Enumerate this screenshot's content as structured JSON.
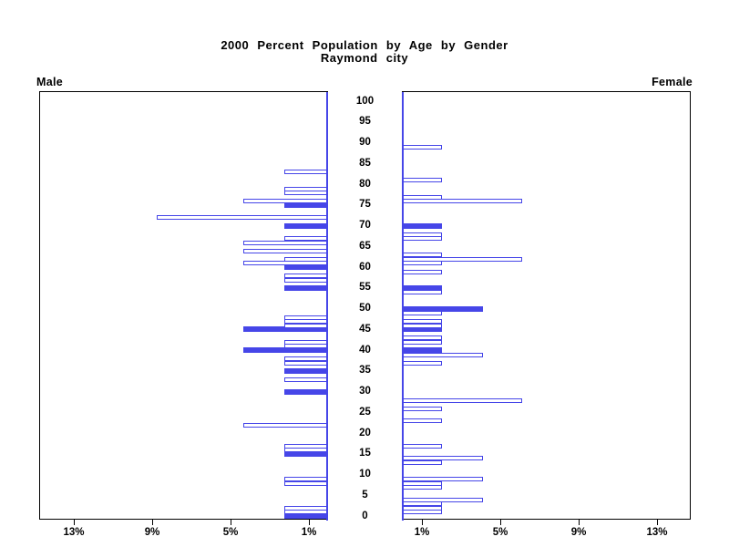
{
  "title": {
    "line1": "2000 Percent Population by Age by Gender",
    "line2": "Raymond city"
  },
  "panel_labels": {
    "male": "Male",
    "female": "Female"
  },
  "colors": {
    "bar_blue": "#4646e8",
    "frame_black": "#000000",
    "background": "#ffffff"
  },
  "chart_data": {
    "type": "bar",
    "variant": "population-pyramid",
    "title": "2000 Percent Population by Age by Gender",
    "subtitle": "Raymond city",
    "orientation": "horizontal, male bars grow left / female bars grow right",
    "age_axis": {
      "min": 0,
      "max": 100,
      "label_step": 5,
      "labels": [
        100,
        95,
        90,
        85,
        80,
        75,
        70,
        65,
        60,
        55,
        50,
        45,
        40,
        35,
        30,
        25,
        20,
        15,
        10,
        5,
        0
      ]
    },
    "pct_axis": {
      "min": 0,
      "max": 15,
      "ticks": [
        1,
        5,
        9,
        13
      ],
      "male_tick_labels": [
        "13%",
        "9%",
        "5%",
        "1%"
      ],
      "female_tick_labels": [
        "1%",
        "5%",
        "9%",
        "13%"
      ]
    },
    "bar_style_rule": "ages divisible by 5 are solid filled bars; all other ages are hollow outlined bars",
    "series": [
      {
        "name": "Male",
        "side": "left",
        "points": [
          {
            "age": 0,
            "pct": 2.2,
            "filled": true
          },
          {
            "age": 1,
            "pct": 2.2,
            "filled": false
          },
          {
            "age": 2,
            "pct": 2.2,
            "filled": false
          },
          {
            "age": 8,
            "pct": 2.2,
            "filled": false
          },
          {
            "age": 9,
            "pct": 2.2,
            "filled": false
          },
          {
            "age": 15,
            "pct": 2.2,
            "filled": true
          },
          {
            "age": 16,
            "pct": 2.2,
            "filled": false
          },
          {
            "age": 17,
            "pct": 2.2,
            "filled": false
          },
          {
            "age": 22,
            "pct": 4.3,
            "filled": false
          },
          {
            "age": 30,
            "pct": 2.2,
            "filled": true
          },
          {
            "age": 33,
            "pct": 2.2,
            "filled": false
          },
          {
            "age": 35,
            "pct": 2.2,
            "filled": true
          },
          {
            "age": 37,
            "pct": 2.2,
            "filled": false
          },
          {
            "age": 38,
            "pct": 2.2,
            "filled": false
          },
          {
            "age": 40,
            "pct": 4.3,
            "filled": true
          },
          {
            "age": 41,
            "pct": 2.2,
            "filled": false
          },
          {
            "age": 42,
            "pct": 2.2,
            "filled": false
          },
          {
            "age": 45,
            "pct": 4.3,
            "filled": true
          },
          {
            "age": 46,
            "pct": 2.2,
            "filled": false
          },
          {
            "age": 47,
            "pct": 2.2,
            "filled": false
          },
          {
            "age": 48,
            "pct": 2.2,
            "filled": false
          },
          {
            "age": 55,
            "pct": 2.2,
            "filled": true
          },
          {
            "age": 57,
            "pct": 2.2,
            "filled": false
          },
          {
            "age": 58,
            "pct": 2.2,
            "filled": false
          },
          {
            "age": 60,
            "pct": 2.2,
            "filled": true
          },
          {
            "age": 61,
            "pct": 4.3,
            "filled": false
          },
          {
            "age": 62,
            "pct": 2.2,
            "filled": false
          },
          {
            "age": 64,
            "pct": 4.3,
            "filled": false
          },
          {
            "age": 66,
            "pct": 4.3,
            "filled": false
          },
          {
            "age": 67,
            "pct": 2.2,
            "filled": false
          },
          {
            "age": 70,
            "pct": 2.2,
            "filled": true
          },
          {
            "age": 72,
            "pct": 8.7,
            "filled": false
          },
          {
            "age": 75,
            "pct": 2.2,
            "filled": true
          },
          {
            "age": 76,
            "pct": 4.3,
            "filled": false
          },
          {
            "age": 78,
            "pct": 2.2,
            "filled": false
          },
          {
            "age": 79,
            "pct": 2.2,
            "filled": false
          },
          {
            "age": 83,
            "pct": 2.2,
            "filled": false
          }
        ]
      },
      {
        "name": "Female",
        "side": "right",
        "points": [
          {
            "age": 1,
            "pct": 2.0,
            "filled": false
          },
          {
            "age": 2,
            "pct": 2.0,
            "filled": false
          },
          {
            "age": 3,
            "pct": 2.0,
            "filled": false
          },
          {
            "age": 4,
            "pct": 4.1,
            "filled": false
          },
          {
            "age": 7,
            "pct": 2.0,
            "filled": false
          },
          {
            "age": 8,
            "pct": 2.0,
            "filled": false
          },
          {
            "age": 9,
            "pct": 4.1,
            "filled": false
          },
          {
            "age": 13,
            "pct": 2.0,
            "filled": false
          },
          {
            "age": 14,
            "pct": 4.1,
            "filled": false
          },
          {
            "age": 17,
            "pct": 2.0,
            "filled": false
          },
          {
            "age": 23,
            "pct": 2.0,
            "filled": false
          },
          {
            "age": 26,
            "pct": 2.0,
            "filled": false
          },
          {
            "age": 28,
            "pct": 6.1,
            "filled": false
          },
          {
            "age": 37,
            "pct": 2.0,
            "filled": false
          },
          {
            "age": 39,
            "pct": 4.1,
            "filled": false
          },
          {
            "age": 40,
            "pct": 2.0,
            "filled": true
          },
          {
            "age": 42,
            "pct": 2.0,
            "filled": false
          },
          {
            "age": 43,
            "pct": 2.0,
            "filled": false
          },
          {
            "age": 45,
            "pct": 2.0,
            "filled": true
          },
          {
            "age": 46,
            "pct": 2.0,
            "filled": false
          },
          {
            "age": 47,
            "pct": 2.0,
            "filled": false
          },
          {
            "age": 49,
            "pct": 2.0,
            "filled": false
          },
          {
            "age": 50,
            "pct": 4.1,
            "filled": true
          },
          {
            "age": 54,
            "pct": 2.0,
            "filled": false
          },
          {
            "age": 55,
            "pct": 2.0,
            "filled": true
          },
          {
            "age": 59,
            "pct": 2.0,
            "filled": false
          },
          {
            "age": 61,
            "pct": 2.0,
            "filled": false
          },
          {
            "age": 62,
            "pct": 6.1,
            "filled": false
          },
          {
            "age": 63,
            "pct": 2.0,
            "filled": false
          },
          {
            "age": 67,
            "pct": 2.0,
            "filled": false
          },
          {
            "age": 68,
            "pct": 2.0,
            "filled": false
          },
          {
            "age": 70,
            "pct": 2.0,
            "filled": true
          },
          {
            "age": 76,
            "pct": 6.1,
            "filled": false
          },
          {
            "age": 77,
            "pct": 2.0,
            "filled": false
          },
          {
            "age": 81,
            "pct": 2.0,
            "filled": false
          },
          {
            "age": 89,
            "pct": 2.0,
            "filled": false
          }
        ]
      }
    ]
  }
}
